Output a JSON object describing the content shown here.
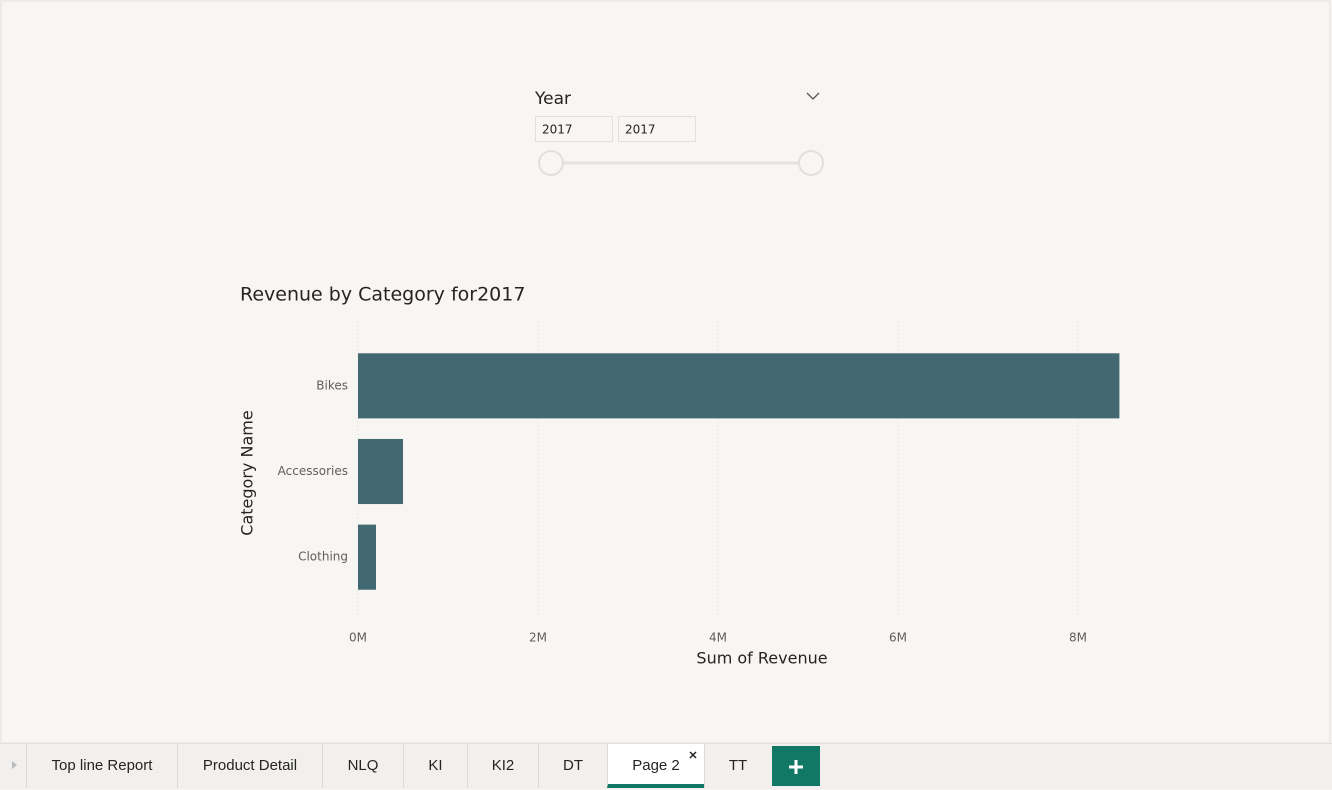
{
  "slicer": {
    "title": "Year",
    "from": "2017",
    "to": "2017"
  },
  "chart_data": {
    "type": "bar",
    "orientation": "horizontal",
    "title": "Revenue by Category for2017",
    "categories": [
      "Bikes",
      "Accessories",
      "Clothing"
    ],
    "values": [
      8460000,
      500000,
      200000
    ],
    "color": "#426872",
    "xlabel": "Sum of Revenue",
    "ylabel": "Category Name",
    "xlim": [
      0,
      8500000
    ],
    "xticks": [
      {
        "value": 0,
        "label": "0M"
      },
      {
        "value": 2000000,
        "label": "2M"
      },
      {
        "value": 4000000,
        "label": "4M"
      },
      {
        "value": 6000000,
        "label": "6M"
      },
      {
        "value": 8000000,
        "label": "8M"
      }
    ],
    "grid": true
  },
  "tabs": [
    "Top line Report",
    "Product Detail",
    "NLQ",
    "KI",
    "KI2",
    "DT",
    "Page 2",
    "TT"
  ],
  "active_tab": 6
}
